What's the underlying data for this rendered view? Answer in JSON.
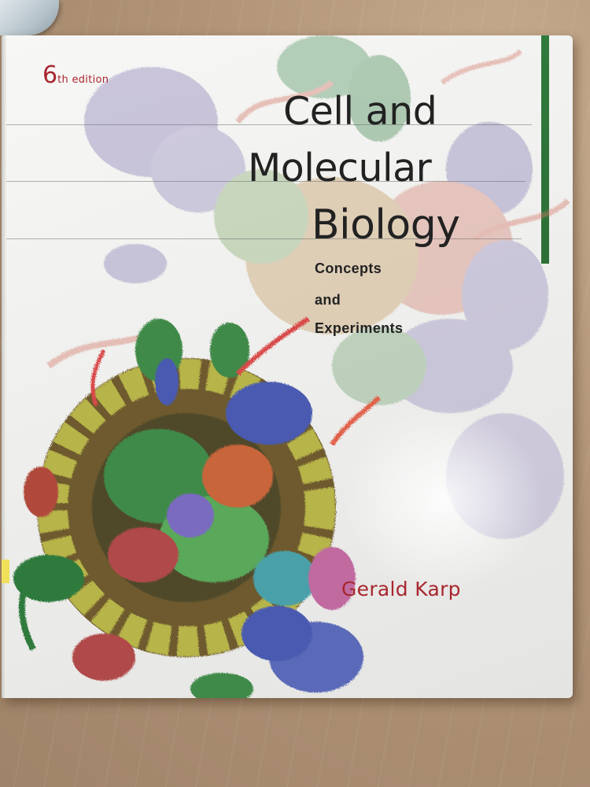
{
  "book": {
    "edition_number": "6",
    "edition_suffix": "th edition",
    "title_lines": [
      "Cell and",
      "Molecular",
      "Biology"
    ],
    "subtitle_lines": [
      "Concepts",
      "and",
      "Experiments"
    ],
    "author": "Gerald Karp"
  },
  "colors": {
    "cover_background": "#f2f2f0",
    "edition_red": "#a8262e",
    "title_black": "#222222",
    "spine_green": "#2f7a3c",
    "cloth_tan": "#b49a80"
  }
}
